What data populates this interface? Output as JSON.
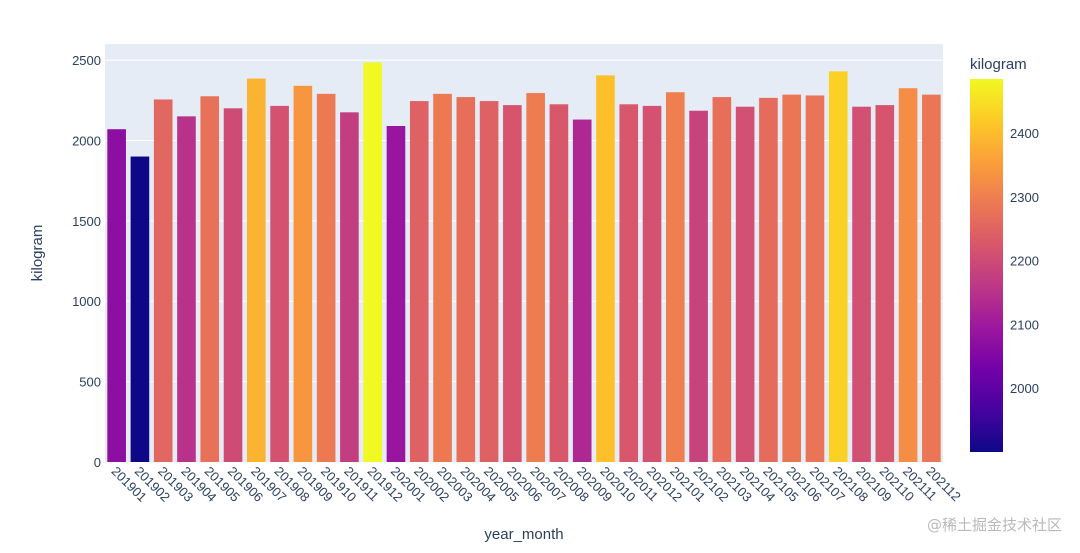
{
  "chart_data": {
    "type": "bar",
    "title": "",
    "xlabel": "year_month",
    "ylabel": "kilogram",
    "ylim": [
      0,
      2600
    ],
    "yticks": [
      0,
      500,
      1000,
      1500,
      2000,
      2500
    ],
    "grid": true,
    "categories": [
      "201901",
      "201902",
      "201903",
      "201904",
      "201905",
      "201906",
      "201907",
      "201908",
      "201909",
      "201910",
      "201911",
      "201912",
      "202001",
      "202002",
      "202003",
      "202004",
      "202005",
      "202006",
      "202007",
      "202008",
      "202009",
      "202010",
      "202011",
      "202012",
      "202101",
      "202102",
      "202103",
      "202104",
      "202105",
      "202106",
      "202107",
      "202108",
      "202109",
      "202110",
      "202111",
      "202112"
    ],
    "values": [
      2070,
      1900,
      2255,
      2150,
      2275,
      2200,
      2385,
      2215,
      2340,
      2290,
      2175,
      2485,
      2090,
      2245,
      2290,
      2270,
      2245,
      2220,
      2295,
      2225,
      2130,
      2405,
      2225,
      2215,
      2300,
      2185,
      2270,
      2210,
      2265,
      2285,
      2280,
      2430,
      2210,
      2220,
      2325,
      2285
    ],
    "colorbar": {
      "title": "kilogram",
      "range": [
        1900,
        2485
      ],
      "ticks": [
        2000,
        2100,
        2200,
        2300,
        2400
      ],
      "colorscale": "plasma"
    }
  },
  "watermark": "@稀土掘金技术社区"
}
